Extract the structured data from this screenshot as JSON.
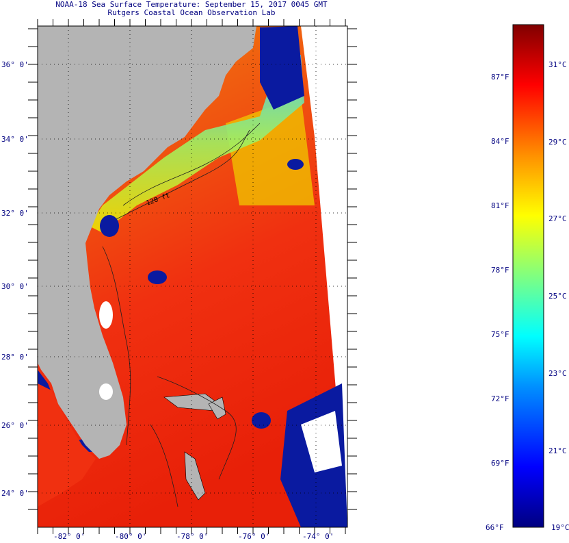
{
  "title_line1": "NOAA-18 Sea Surface Temperature:  September 15, 2017 0045 GMT",
  "title_line2": "Rutgers Coastal Ocean Observation Lab",
  "map": {
    "lat_labels": [
      "36° 0'",
      "34° 0'",
      "32° 0'",
      "30° 0'",
      "28° 0'",
      "26° 0'",
      "24° 0'"
    ],
    "lon_labels": [
      "-82° 0'",
      "-80° 0'",
      "-78° 0'",
      "-76° 0'",
      "-74° 0'"
    ],
    "contour_label": "120 ft",
    "colors": {
      "land": "#b4b4b4",
      "warm": "#f03010",
      "cold": "#0a1aa0",
      "frame": "#000000"
    }
  },
  "colorbar": {
    "f_labels": [
      "87°F",
      "84°F",
      "81°F",
      "78°F",
      "75°F",
      "72°F",
      "69°F",
      "66°F"
    ],
    "c_labels": [
      "31°C",
      "29°C",
      "27°C",
      "25°C",
      "23°C",
      "21°C",
      "19°C"
    ],
    "stops": [
      "#000080",
      "#0000ff",
      "#0080ff",
      "#00ffff",
      "#80ff80",
      "#ffff00",
      "#ff8000",
      "#ff0000",
      "#800000"
    ]
  }
}
